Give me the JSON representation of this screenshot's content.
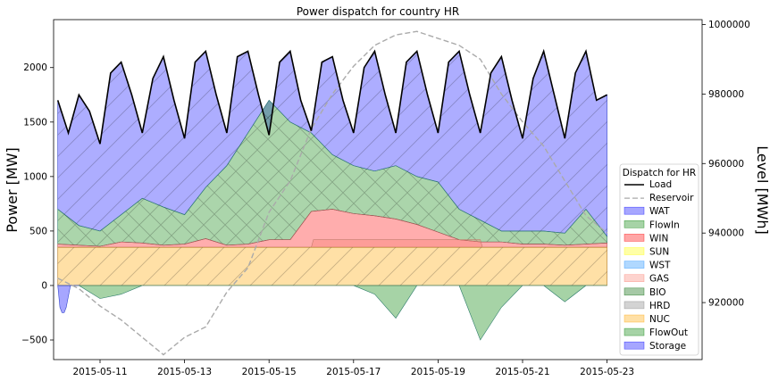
{
  "chart_data": {
    "type": "area",
    "title": "Power dispatch for country HR",
    "ylabel": "Power [MW]",
    "ylabel_right": "Level [MWh]",
    "x_ticks": [
      "2015-05-11",
      "2015-05-13",
      "2015-05-15",
      "2015-05-17",
      "2015-05-19",
      "2015-05-21",
      "2015-05-23"
    ],
    "y_ticks": [
      -500,
      0,
      500,
      1000,
      1500,
      2000
    ],
    "y2_ticks": [
      920000,
      940000,
      960000,
      980000,
      1000000
    ],
    "xlim": [
      "2015-05-09 06:00",
      "2015-05-24 06:00"
    ],
    "ylim": [
      -680,
      2440
    ],
    "y2lim": [
      903600,
      1001400
    ],
    "legend": {
      "title": "Dispatch for HR",
      "placement": "lower-right",
      "entries": [
        {
          "label": "Load",
          "kind": "line",
          "color": "#000000",
          "dash": ""
        },
        {
          "label": "Reservoir",
          "kind": "line",
          "color": "#aaaaaa",
          "dash": "6,3"
        },
        {
          "label": "WAT",
          "kind": "patch",
          "color": "#0000ff"
        },
        {
          "label": "FlowIn",
          "kind": "patch",
          "color": "#008000"
        },
        {
          "label": "WIN",
          "kind": "patch",
          "color": "#ff0000"
        },
        {
          "label": "SUN",
          "kind": "patch",
          "color": "#ffff00"
        },
        {
          "label": "WST",
          "kind": "patch",
          "color": "#1e90ff"
        },
        {
          "label": "GAS",
          "kind": "patch",
          "color": "#fa8072"
        },
        {
          "label": "BIO",
          "kind": "patch",
          "color": "#006400"
        },
        {
          "label": "HRD",
          "kind": "patch",
          "color": "#808080"
        },
        {
          "label": "NUC",
          "kind": "patch",
          "color": "#ffa500"
        },
        {
          "label": "FlowOut",
          "kind": "patch",
          "color": "#008000"
        },
        {
          "label": "Storage",
          "kind": "patch",
          "color": "#0000ff"
        }
      ]
    },
    "series": {
      "NUC": {
        "color": "#ffa500",
        "x": [
          1.0,
          14.0
        ],
        "y": [
          350,
          350
        ]
      },
      "WIN": {
        "color": "#ff0000",
        "x": [
          1.0,
          1.5,
          2.0,
          2.5,
          3.0,
          3.5,
          4.0,
          4.5,
          5.0,
          5.5,
          6.0,
          6.5,
          7.0,
          7.5,
          8.0,
          8.5,
          9.0,
          9.5,
          10.0,
          10.5,
          11.0,
          11.5,
          12.0,
          12.5,
          13.0,
          13.5,
          14.0
        ],
        "y": [
          380,
          370,
          360,
          400,
          390,
          370,
          380,
          430,
          370,
          380,
          420,
          420,
          680,
          700,
          660,
          640,
          610,
          560,
          490,
          420,
          400,
          400,
          380,
          380,
          370,
          380,
          390
        ]
      },
      "GAS": {
        "color": "#fa8072",
        "x": [
          1.0,
          7.0,
          7.05,
          11.0,
          11.05,
          14.0
        ],
        "y": [
          350,
          350,
          420,
          420,
          350,
          350
        ]
      },
      "FlowIn": {
        "color": "#008000",
        "x": [
          1.0,
          1.5,
          2.0,
          2.5,
          3.0,
          3.5,
          4.0,
          4.5,
          5.0,
          5.5,
          6.0,
          6.5,
          7.0,
          7.5,
          8.0,
          8.5,
          9.0,
          9.5,
          10.0,
          10.5,
          11.0,
          11.5,
          12.0,
          12.5,
          13.0,
          13.5,
          14.0
        ],
        "y": [
          700,
          550,
          500,
          650,
          800,
          720,
          650,
          900,
          1100,
          1400,
          1700,
          1500,
          1400,
          1200,
          1100,
          1050,
          1100,
          1000,
          950,
          700,
          600,
          500,
          500,
          500,
          480,
          700,
          450
        ]
      },
      "Load": {
        "color": "#000000",
        "x": [
          1.0,
          1.25,
          1.5,
          1.75,
          2.0,
          2.25,
          2.5,
          2.75,
          3.0,
          3.25,
          3.5,
          3.75,
          4.0,
          4.25,
          4.5,
          4.75,
          5.0,
          5.25,
          5.5,
          5.75,
          6.0,
          6.25,
          6.5,
          6.75,
          7.0,
          7.25,
          7.5,
          7.75,
          8.0,
          8.25,
          8.5,
          8.75,
          9.0,
          9.25,
          9.5,
          9.75,
          10.0,
          10.25,
          10.5,
          10.75,
          11.0,
          11.25,
          11.5,
          11.75,
          12.0,
          12.25,
          12.5,
          12.75,
          13.0,
          13.25,
          13.5,
          13.75,
          14.0
        ],
        "y": [
          1700,
          1400,
          1750,
          1600,
          1300,
          1950,
          2050,
          1750,
          1400,
          1900,
          2100,
          1700,
          1350,
          2050,
          2150,
          1750,
          1400,
          2100,
          2150,
          1750,
          1380,
          2050,
          2150,
          1700,
          1420,
          2050,
          2100,
          1700,
          1400,
          2000,
          2150,
          1750,
          1400,
          2050,
          2150,
          1750,
          1400,
          2050,
          2150,
          1750,
          1400,
          1950,
          2100,
          1700,
          1350,
          1900,
          2150,
          1750,
          1350,
          1950,
          2150,
          1700,
          1750
        ]
      },
      "Reservoir": {
        "color": "#aaaaaa",
        "x": [
          1.0,
          1.5,
          2.0,
          2.5,
          3.0,
          3.5,
          4.0,
          4.5,
          5.0,
          5.5,
          6.0,
          6.5,
          7.0,
          7.5,
          8.0,
          8.5,
          9.0,
          9.5,
          10.0,
          10.5,
          11.0,
          11.5,
          12.0,
          12.5,
          13.0,
          13.5,
          14.0
        ],
        "y": [
          927000,
          924000,
          919000,
          915000,
          910000,
          905000,
          910000,
          913000,
          923000,
          930000,
          946000,
          955000,
          970000,
          980000,
          988000,
          994000,
          997000,
          998000,
          996000,
          994000,
          990000,
          980000,
          972000,
          965000,
          955000,
          945000,
          940000
        ]
      },
      "FlowOut": {
        "color": "#008000",
        "x": [
          1.0,
          1.5,
          2.0,
          2.5,
          3.0,
          3.5,
          4.0,
          4.5,
          5.0,
          5.5,
          6.0,
          6.5,
          7.0,
          7.5,
          8.0,
          8.5,
          9.0,
          9.5,
          10.0,
          10.5,
          11.0,
          11.5,
          12.0,
          12.5,
          13.0,
          13.5,
          14.0
        ],
        "y": [
          0,
          0,
          -120,
          -80,
          0,
          0,
          0,
          0,
          0,
          0,
          0,
          0,
          0,
          0,
          0,
          -80,
          -300,
          0,
          0,
          0,
          -500,
          -200,
          0,
          0,
          -150,
          0,
          0
        ]
      },
      "Storage": {
        "color": "#0000ff",
        "x": [
          1.0,
          1.05,
          1.1,
          1.15,
          1.2,
          1.25,
          1.3,
          1.35,
          1.4,
          1.45,
          1.5
        ],
        "y": [
          0,
          -200,
          -250,
          -250,
          -200,
          -100,
          0,
          0,
          0,
          0,
          0
        ]
      }
    }
  }
}
